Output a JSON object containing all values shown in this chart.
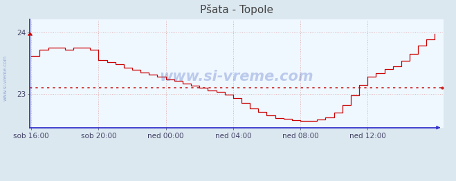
{
  "title": "Pšata - Topole",
  "title_color": "#444444",
  "bg_color": "#dce8f0",
  "plot_bg_color": "#f0f8ff",
  "line_color": "#cc0000",
  "ref_line_color": "#cc2222",
  "ref_line_value": 23.1,
  "grid_color": "#ddaaaa",
  "axis_color": "#3333cc",
  "tick_color": "#444466",
  "ylim": [
    22.45,
    24.22
  ],
  "yticks": [
    23,
    24
  ],
  "xtick_positions": [
    0,
    4,
    8,
    12,
    16,
    20
  ],
  "xtick_labels": [
    "sob 16:00",
    "sob 20:00",
    "ned 00:00",
    "ned 04:00",
    "ned 08:00",
    "ned 12:00"
  ],
  "legend_color": "#cc0000",
  "watermark": "www.si-vreme.com",
  "left_label": "www.si-vreme.com",
  "t": [
    0,
    0.5,
    1.0,
    1.5,
    2.0,
    2.5,
    3.0,
    3.5,
    4.0,
    4.5,
    5.0,
    5.5,
    6.0,
    6.5,
    7.0,
    7.5,
    8.0,
    8.5,
    9.0,
    9.5,
    10.0,
    10.5,
    11.0,
    11.5,
    12.0,
    12.5,
    13.0,
    13.5,
    14.0,
    14.5,
    15.0,
    15.5,
    16.0,
    16.5,
    17.0,
    17.5,
    18.0,
    18.5,
    19.0,
    19.5,
    20.0,
    20.5,
    21.0,
    21.5,
    22.0,
    22.5,
    23.0,
    23.5,
    24.0
  ],
  "temp": [
    23.62,
    23.72,
    23.75,
    23.75,
    23.72,
    23.75,
    23.75,
    23.72,
    23.55,
    23.52,
    23.48,
    23.43,
    23.39,
    23.35,
    23.31,
    23.28,
    23.24,
    23.21,
    23.17,
    23.13,
    23.1,
    23.06,
    23.03,
    22.99,
    22.93,
    22.85,
    22.76,
    22.71,
    22.65,
    22.6,
    22.59,
    22.57,
    22.56,
    22.56,
    22.58,
    22.61,
    22.7,
    22.82,
    22.98,
    23.14,
    23.28,
    23.34,
    23.4,
    23.45,
    23.54,
    23.65,
    23.79,
    23.89,
    23.98
  ]
}
